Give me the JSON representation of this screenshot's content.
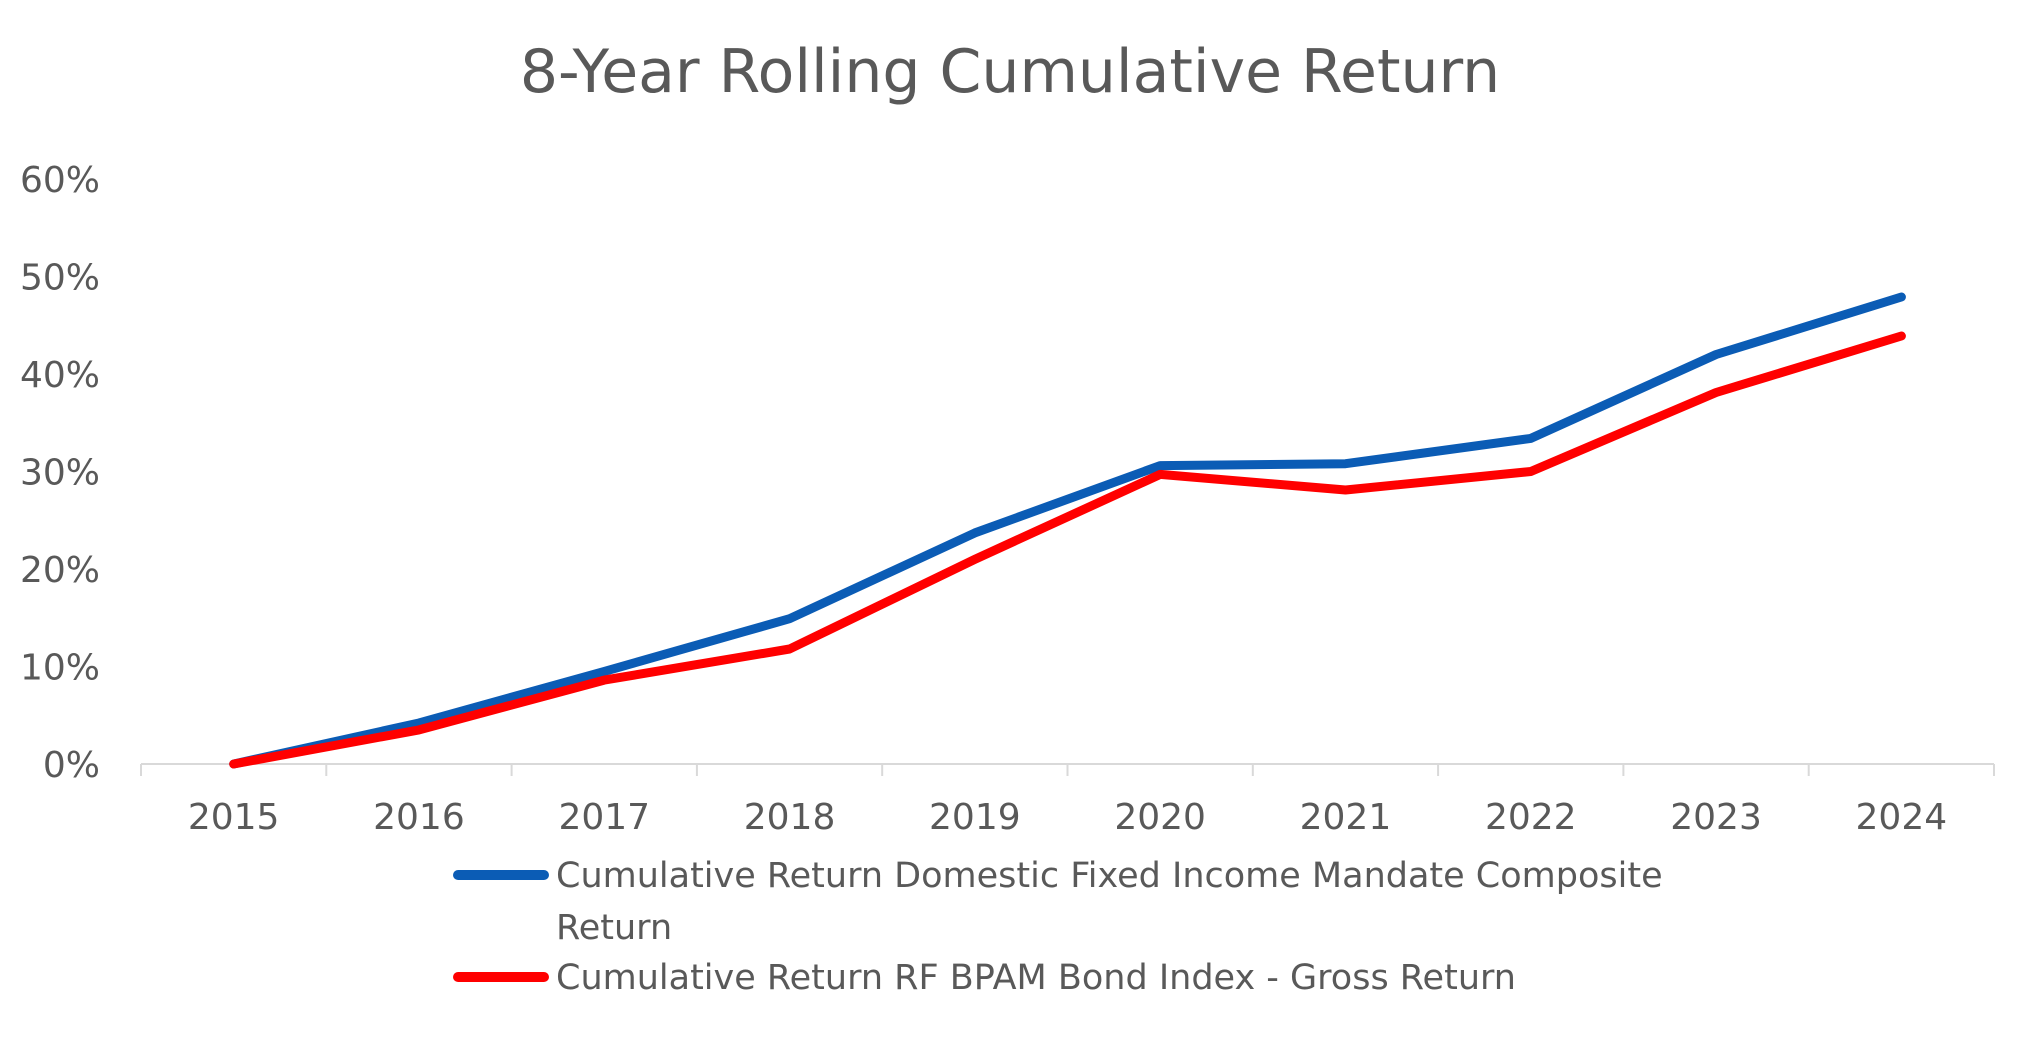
{
  "chart_data": {
    "type": "line",
    "title": "8-Year Rolling Cumulative Return",
    "xlabel": "",
    "ylabel": "",
    "categories": [
      "2015",
      "2016",
      "2017",
      "2018",
      "2019",
      "2020",
      "2021",
      "2022",
      "2023",
      "2024"
    ],
    "y_ticks": [
      "0%",
      "10%",
      "20%",
      "30%",
      "40%",
      "50%",
      "60%"
    ],
    "ylim": [
      0,
      60
    ],
    "y_unit": "%",
    "grid": false,
    "legend_position": "bottom",
    "series": [
      {
        "name": "Cumulative Return Domestic Fixed Income Mandate Composite Return",
        "legend_lines": [
          "Cumulative Return Domestic Fixed Income Mandate Composite",
          "Return"
        ],
        "color": "#0B5CB5",
        "values": [
          0.0,
          4.2,
          9.5,
          14.9,
          23.7,
          30.6,
          30.8,
          33.4,
          42.0,
          47.9
        ]
      },
      {
        "name": "Cumulative Return RF BPAM Bond Index - Gross Return",
        "legend_lines": [
          "Cumulative Return RF BPAM Bond Index - Gross Return"
        ],
        "color": "#FF0000",
        "values": [
          0.0,
          3.5,
          8.6,
          11.8,
          21.0,
          29.7,
          28.1,
          30.0,
          38.1,
          43.9
        ]
      }
    ]
  }
}
